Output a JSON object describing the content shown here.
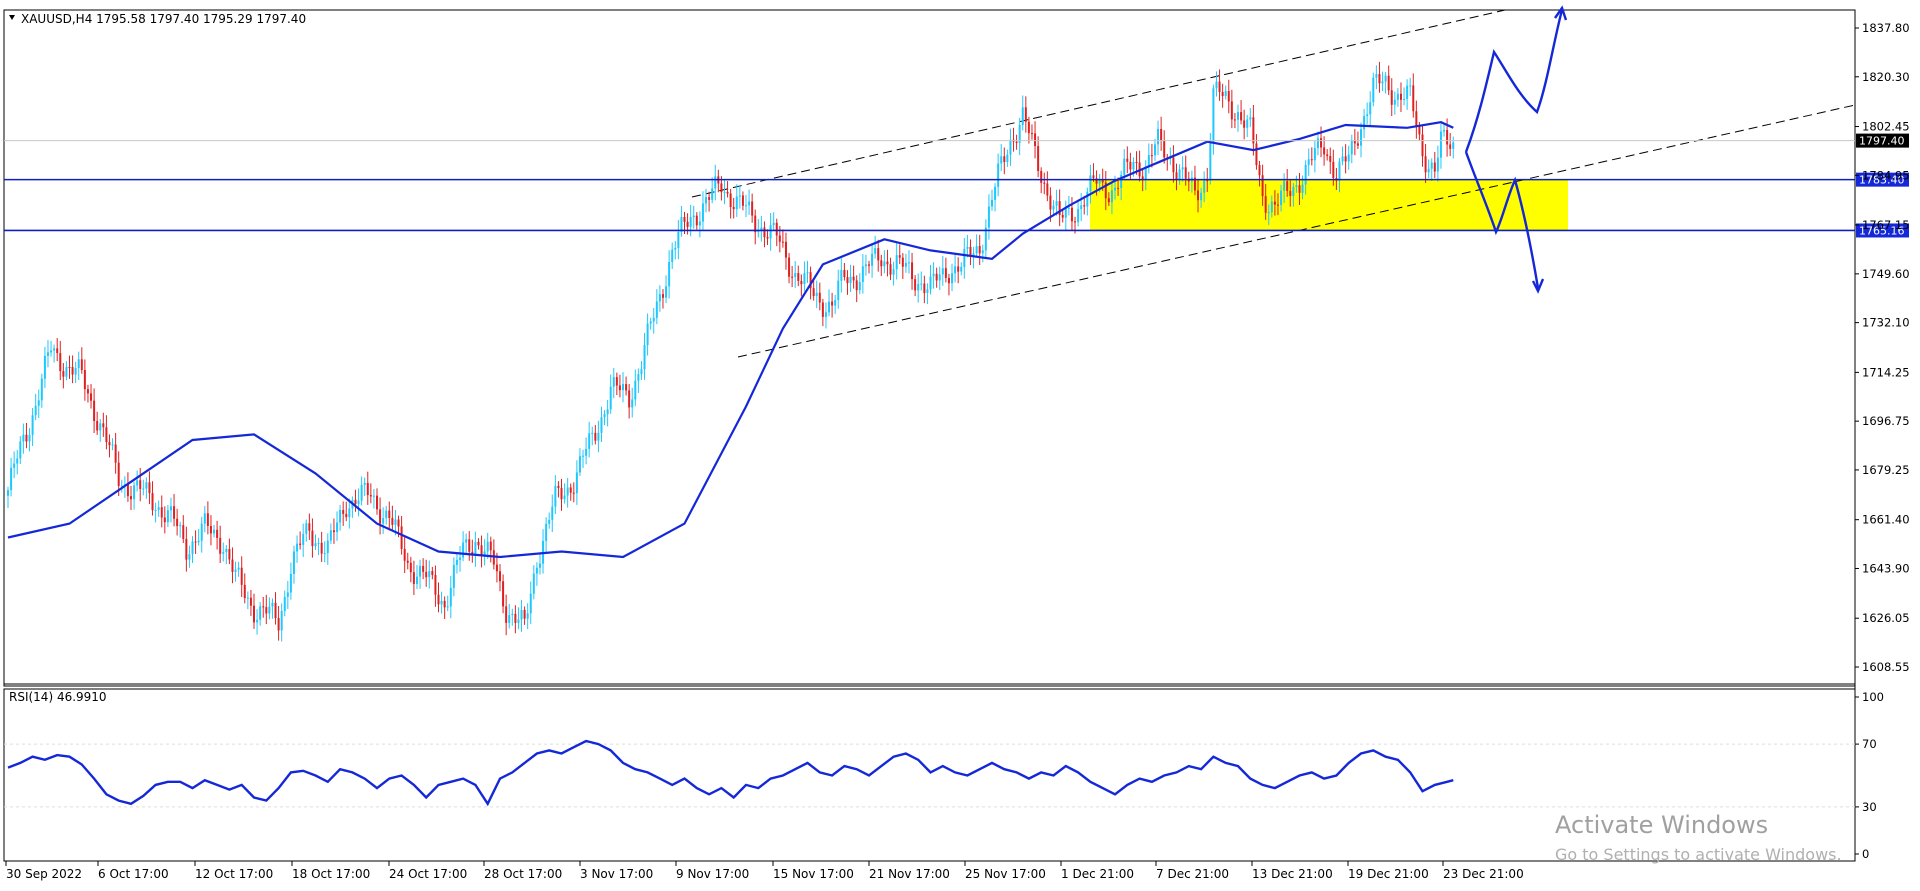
{
  "chart_header": {
    "symbol_info": "XAUUSD,H4  1795.58 1797.40 1795.29 1797.40"
  },
  "rsi_header": {
    "label": "RSI(14) 46.9910"
  },
  "watermark": {
    "line1": "Activate Windows",
    "line2": "Go to Settings to activate Windows."
  },
  "colors": {
    "bull": "#1ec8ff",
    "bear": "#e02020",
    "ma": "#1428d8",
    "zone": "#ffff00",
    "level_line": "#1020c0",
    "price_tag_bg": "#000000",
    "level_tag_bg": "#1428d8"
  },
  "chart_data": [
    {
      "type": "candlestick",
      "title": "XAUUSD,H4",
      "ylim": [
        1600,
        1847
      ],
      "price_ticks": [
        "1837.80",
        "1820.30",
        "1802.45",
        "1784.95",
        "1767.15",
        "1749.60",
        "1732.10",
        "1714.25",
        "1696.75",
        "1679.25",
        "1661.40",
        "1643.90",
        "1626.05",
        "1608.55"
      ],
      "date_ticks": [
        "30 Sep 2022",
        "6 Oct 17:00",
        "12 Oct 17:00",
        "18 Oct 17:00",
        "24 Oct 17:00",
        "28 Oct 17:00",
        "3 Nov 17:00",
        "9 Nov 17:00",
        "15 Nov 17:00",
        "21 Nov 17:00",
        "25 Nov 17:00",
        "1 Dec 21:00",
        "7 Dec 21:00",
        "13 Dec 21:00",
        "19 Dec 21:00",
        "23 Dec 21:00"
      ],
      "close_path": [
        [
          0,
          1672
        ],
        [
          8,
          1700
        ],
        [
          14,
          1722
        ],
        [
          18,
          1718
        ],
        [
          24,
          1712
        ],
        [
          30,
          1696
        ],
        [
          36,
          1676
        ],
        [
          42,
          1672
        ],
        [
          48,
          1668
        ],
        [
          54,
          1660
        ],
        [
          58,
          1652
        ],
        [
          64,
          1658
        ],
        [
          70,
          1654
        ],
        [
          74,
          1640
        ],
        [
          80,
          1630
        ],
        [
          88,
          1625
        ],
        [
          92,
          1645
        ],
        [
          98,
          1658
        ],
        [
          104,
          1650
        ],
        [
          110,
          1668
        ],
        [
          118,
          1670
        ],
        [
          124,
          1662
        ],
        [
          130,
          1646
        ],
        [
          136,
          1640
        ],
        [
          142,
          1632
        ],
        [
          148,
          1650
        ],
        [
          152,
          1655
        ],
        [
          158,
          1645
        ],
        [
          162,
          1630
        ],
        [
          168,
          1622
        ],
        [
          172,
          1648
        ],
        [
          178,
          1668
        ],
        [
          184,
          1676
        ],
        [
          190,
          1690
        ],
        [
          196,
          1708
        ],
        [
          202,
          1706
        ],
        [
          206,
          1718
        ],
        [
          212,
          1742
        ],
        [
          216,
          1758
        ],
        [
          222,
          1770
        ],
        [
          228,
          1776
        ],
        [
          232,
          1782
        ],
        [
          238,
          1774
        ],
        [
          244,
          1768
        ],
        [
          250,
          1762
        ],
        [
          256,
          1750
        ],
        [
          262,
          1742
        ],
        [
          268,
          1738
        ],
        [
          272,
          1748
        ],
        [
          278,
          1750
        ],
        [
          284,
          1756
        ],
        [
          290,
          1752
        ],
        [
          296,
          1748
        ],
        [
          300,
          1744
        ],
        [
          306,
          1752
        ],
        [
          310,
          1752
        ],
        [
          316,
          1760
        ],
        [
          322,
          1784
        ],
        [
          326,
          1798
        ],
        [
          330,
          1806
        ],
        [
          334,
          1792
        ],
        [
          338,
          1780
        ],
        [
          342,
          1768
        ],
        [
          348,
          1774
        ],
        [
          354,
          1782
        ],
        [
          360,
          1780
        ],
        [
          366,
          1790
        ],
        [
          370,
          1788
        ],
        [
          374,
          1796
        ],
        [
          378,
          1792
        ],
        [
          382,
          1784
        ],
        [
          386,
          1778
        ],
        [
          390,
          1786
        ],
        [
          392,
          1814
        ],
        [
          396,
          1812
        ],
        [
          400,
          1808
        ],
        [
          404,
          1800
        ],
        [
          408,
          1778
        ],
        [
          412,
          1774
        ],
        [
          416,
          1778
        ],
        [
          420,
          1784
        ],
        [
          424,
          1790
        ],
        [
          428,
          1796
        ],
        [
          432,
          1786
        ],
        [
          436,
          1790
        ],
        [
          440,
          1804
        ],
        [
          444,
          1816
        ],
        [
          448,
          1818
        ],
        [
          452,
          1814
        ],
        [
          456,
          1812
        ],
        [
          460,
          1794
        ],
        [
          464,
          1786
        ],
        [
          466,
          1796
        ],
        [
          470,
          1797
        ]
      ],
      "ma_path": [
        [
          0,
          1655
        ],
        [
          20,
          1660
        ],
        [
          40,
          1675
        ],
        [
          60,
          1690
        ],
        [
          80,
          1692
        ],
        [
          100,
          1678
        ],
        [
          120,
          1660
        ],
        [
          140,
          1650
        ],
        [
          160,
          1648
        ],
        [
          180,
          1650
        ],
        [
          200,
          1648
        ],
        [
          220,
          1660
        ],
        [
          240,
          1702
        ],
        [
          252,
          1730
        ],
        [
          265,
          1753
        ],
        [
          285,
          1762
        ],
        [
          300,
          1758
        ],
        [
          320,
          1755
        ],
        [
          330,
          1764
        ],
        [
          345,
          1774
        ],
        [
          360,
          1783
        ],
        [
          375,
          1790
        ],
        [
          390,
          1797
        ],
        [
          405,
          1794
        ],
        [
          420,
          1798
        ],
        [
          435,
          1803
        ],
        [
          455,
          1802
        ],
        [
          466,
          1804
        ],
        [
          470,
          1802
        ]
      ],
      "overlays": {
        "support_zone": [
          1765.16,
          1783.4
        ],
        "horizontal_levels": [
          1783.4,
          1765.16
        ],
        "level_labels": [
          "1783.40",
          "1765.16"
        ],
        "current_price_label": "1797.40"
      }
    },
    {
      "type": "line",
      "title": "RSI(14) 46.9910",
      "ylim": [
        0,
        100
      ],
      "rsi_ticks": [
        "100",
        "70",
        "30",
        "0"
      ],
      "rsi_path": [
        [
          0,
          55
        ],
        [
          4,
          58
        ],
        [
          8,
          62
        ],
        [
          12,
          60
        ],
        [
          16,
          63
        ],
        [
          20,
          62
        ],
        [
          24,
          57
        ],
        [
          28,
          48
        ],
        [
          32,
          38
        ],
        [
          36,
          34
        ],
        [
          40,
          32
        ],
        [
          44,
          37
        ],
        [
          48,
          44
        ],
        [
          52,
          46
        ],
        [
          56,
          46
        ],
        [
          60,
          42
        ],
        [
          64,
          47
        ],
        [
          68,
          44
        ],
        [
          72,
          41
        ],
        [
          76,
          44
        ],
        [
          80,
          36
        ],
        [
          84,
          34
        ],
        [
          88,
          42
        ],
        [
          92,
          52
        ],
        [
          96,
          53
        ],
        [
          100,
          50
        ],
        [
          104,
          46
        ],
        [
          108,
          54
        ],
        [
          112,
          52
        ],
        [
          116,
          48
        ],
        [
          120,
          42
        ],
        [
          124,
          48
        ],
        [
          128,
          50
        ],
        [
          132,
          44
        ],
        [
          136,
          36
        ],
        [
          140,
          44
        ],
        [
          144,
          46
        ],
        [
          148,
          48
        ],
        [
          152,
          44
        ],
        [
          156,
          32
        ],
        [
          160,
          48
        ],
        [
          164,
          52
        ],
        [
          168,
          58
        ],
        [
          172,
          64
        ],
        [
          176,
          66
        ],
        [
          180,
          64
        ],
        [
          184,
          68
        ],
        [
          188,
          72
        ],
        [
          192,
          70
        ],
        [
          196,
          66
        ],
        [
          200,
          58
        ],
        [
          204,
          54
        ],
        [
          208,
          52
        ],
        [
          212,
          48
        ],
        [
          216,
          44
        ],
        [
          220,
          48
        ],
        [
          224,
          42
        ],
        [
          228,
          38
        ],
        [
          232,
          42
        ],
        [
          236,
          36
        ],
        [
          240,
          44
        ],
        [
          244,
          42
        ],
        [
          248,
          48
        ],
        [
          252,
          50
        ],
        [
          256,
          54
        ],
        [
          260,
          58
        ],
        [
          264,
          52
        ],
        [
          268,
          50
        ],
        [
          272,
          56
        ],
        [
          276,
          54
        ],
        [
          280,
          50
        ],
        [
          284,
          56
        ],
        [
          288,
          62
        ],
        [
          292,
          64
        ],
        [
          296,
          60
        ],
        [
          300,
          52
        ],
        [
          304,
          56
        ],
        [
          308,
          52
        ],
        [
          312,
          50
        ],
        [
          316,
          54
        ],
        [
          320,
          58
        ],
        [
          324,
          54
        ],
        [
          328,
          52
        ],
        [
          332,
          48
        ],
        [
          336,
          52
        ],
        [
          340,
          50
        ],
        [
          344,
          56
        ],
        [
          348,
          52
        ],
        [
          352,
          46
        ],
        [
          356,
          42
        ],
        [
          360,
          38
        ],
        [
          364,
          44
        ],
        [
          368,
          48
        ],
        [
          372,
          46
        ],
        [
          376,
          50
        ],
        [
          380,
          52
        ],
        [
          384,
          56
        ],
        [
          388,
          54
        ],
        [
          392,
          62
        ],
        [
          396,
          58
        ],
        [
          400,
          56
        ],
        [
          404,
          48
        ],
        [
          408,
          44
        ],
        [
          412,
          42
        ],
        [
          416,
          46
        ],
        [
          420,
          50
        ],
        [
          424,
          52
        ],
        [
          428,
          48
        ],
        [
          432,
          50
        ],
        [
          436,
          58
        ],
        [
          440,
          64
        ],
        [
          444,
          66
        ],
        [
          448,
          62
        ],
        [
          452,
          60
        ],
        [
          456,
          52
        ],
        [
          460,
          40
        ],
        [
          464,
          44
        ],
        [
          468,
          46
        ],
        [
          470,
          47
        ]
      ]
    }
  ]
}
